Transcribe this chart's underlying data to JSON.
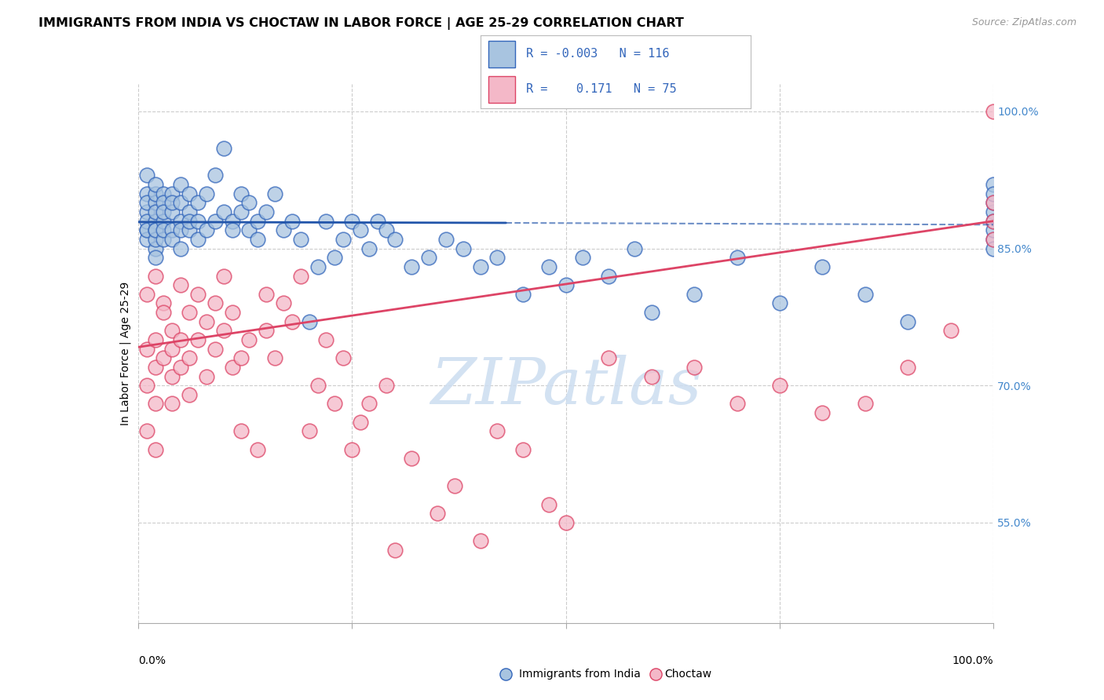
{
  "title": "IMMIGRANTS FROM INDIA VS CHOCTAW IN LABOR FORCE | AGE 25-29 CORRELATION CHART",
  "source": "Source: ZipAtlas.com",
  "ylabel": "In Labor Force | Age 25-29",
  "xlim": [
    0,
    1
  ],
  "ylim": [
    0.44,
    1.03
  ],
  "ytick_values": [
    0.55,
    0.7,
    0.85,
    1.0
  ],
  "legend_R_blue": "-0.003",
  "legend_N_blue": "116",
  "legend_R_pink": "0.171",
  "legend_N_pink": "75",
  "blue_face_color": "#a8c4e0",
  "pink_face_color": "#f4b8c8",
  "blue_edge_color": "#3366bb",
  "pink_edge_color": "#dd4466",
  "blue_trend_color": "#2255aa",
  "pink_trend_color": "#dd4466",
  "grid_color": "#cccccc",
  "watermark_color": "#ccddf0",
  "blue_scatter_x": [
    0.01,
    0.01,
    0.01,
    0.01,
    0.01,
    0.01,
    0.01,
    0.01,
    0.02,
    0.02,
    0.02,
    0.02,
    0.02,
    0.02,
    0.02,
    0.02,
    0.02,
    0.02,
    0.03,
    0.03,
    0.03,
    0.03,
    0.03,
    0.03,
    0.04,
    0.04,
    0.04,
    0.04,
    0.04,
    0.05,
    0.05,
    0.05,
    0.05,
    0.05,
    0.06,
    0.06,
    0.06,
    0.06,
    0.07,
    0.07,
    0.07,
    0.08,
    0.08,
    0.09,
    0.09,
    0.1,
    0.1,
    0.11,
    0.11,
    0.12,
    0.12,
    0.13,
    0.13,
    0.14,
    0.14,
    0.15,
    0.16,
    0.17,
    0.18,
    0.19,
    0.2,
    0.21,
    0.22,
    0.23,
    0.24,
    0.25,
    0.26,
    0.27,
    0.28,
    0.29,
    0.3,
    0.32,
    0.34,
    0.36,
    0.38,
    0.4,
    0.42,
    0.45,
    0.48,
    0.5,
    0.52,
    0.55,
    0.58,
    0.6,
    0.65,
    0.7,
    0.75,
    0.8,
    0.85,
    0.9,
    1.0,
    1.0,
    1.0,
    1.0,
    1.0,
    1.0,
    1.0,
    1.0
  ],
  "blue_scatter_y": [
    0.87,
    0.89,
    0.91,
    0.88,
    0.9,
    0.86,
    0.87,
    0.93,
    0.88,
    0.9,
    0.87,
    0.85,
    0.91,
    0.89,
    0.86,
    0.92,
    0.84,
    0.87,
    0.91,
    0.88,
    0.86,
    0.9,
    0.87,
    0.89,
    0.91,
    0.87,
    0.89,
    0.86,
    0.9,
    0.92,
    0.88,
    0.87,
    0.85,
    0.9,
    0.89,
    0.87,
    0.91,
    0.88,
    0.9,
    0.86,
    0.88,
    0.91,
    0.87,
    0.93,
    0.88,
    0.89,
    0.96,
    0.88,
    0.87,
    0.91,
    0.89,
    0.87,
    0.9,
    0.88,
    0.86,
    0.89,
    0.91,
    0.87,
    0.88,
    0.86,
    0.77,
    0.83,
    0.88,
    0.84,
    0.86,
    0.88,
    0.87,
    0.85,
    0.88,
    0.87,
    0.86,
    0.83,
    0.84,
    0.86,
    0.85,
    0.83,
    0.84,
    0.8,
    0.83,
    0.81,
    0.84,
    0.82,
    0.85,
    0.78,
    0.8,
    0.84,
    0.79,
    0.83,
    0.8,
    0.77,
    0.86,
    0.89,
    0.9,
    0.92,
    0.88,
    0.85,
    0.87,
    0.91
  ],
  "pink_scatter_x": [
    0.01,
    0.01,
    0.01,
    0.01,
    0.02,
    0.02,
    0.02,
    0.02,
    0.02,
    0.03,
    0.03,
    0.03,
    0.04,
    0.04,
    0.04,
    0.04,
    0.05,
    0.05,
    0.05,
    0.06,
    0.06,
    0.06,
    0.07,
    0.07,
    0.08,
    0.08,
    0.09,
    0.09,
    0.1,
    0.1,
    0.11,
    0.11,
    0.12,
    0.12,
    0.13,
    0.14,
    0.15,
    0.15,
    0.16,
    0.17,
    0.18,
    0.19,
    0.2,
    0.21,
    0.22,
    0.23,
    0.24,
    0.25,
    0.26,
    0.27,
    0.29,
    0.3,
    0.32,
    0.35,
    0.37,
    0.4,
    0.42,
    0.45,
    0.48,
    0.5,
    0.55,
    0.6,
    0.65,
    0.7,
    0.75,
    0.8,
    0.85,
    0.9,
    0.95,
    1.0,
    1.0,
    1.0,
    1.0
  ],
  "pink_scatter_y": [
    0.8,
    0.74,
    0.7,
    0.65,
    0.82,
    0.75,
    0.68,
    0.72,
    0.63,
    0.79,
    0.73,
    0.78,
    0.76,
    0.71,
    0.74,
    0.68,
    0.81,
    0.75,
    0.72,
    0.78,
    0.73,
    0.69,
    0.8,
    0.75,
    0.77,
    0.71,
    0.79,
    0.74,
    0.82,
    0.76,
    0.78,
    0.72,
    0.65,
    0.73,
    0.75,
    0.63,
    0.8,
    0.76,
    0.73,
    0.79,
    0.77,
    0.82,
    0.65,
    0.7,
    0.75,
    0.68,
    0.73,
    0.63,
    0.66,
    0.68,
    0.7,
    0.52,
    0.62,
    0.56,
    0.59,
    0.53,
    0.65,
    0.63,
    0.57,
    0.55,
    0.73,
    0.71,
    0.72,
    0.68,
    0.7,
    0.67,
    0.68,
    0.72,
    0.76,
    0.9,
    0.88,
    0.86,
    1.0
  ]
}
